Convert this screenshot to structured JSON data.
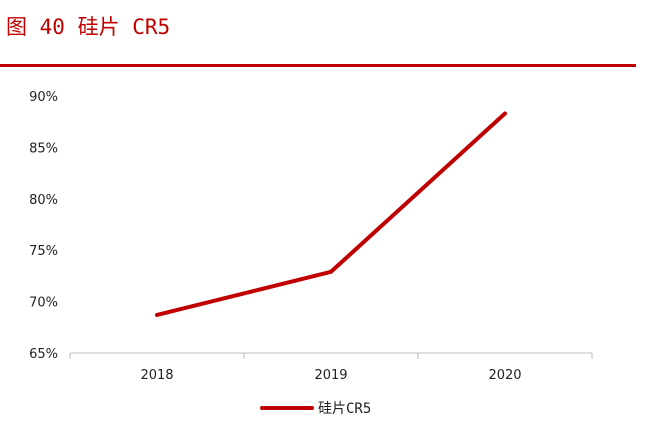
{
  "figure": {
    "title": "图 40  硅片 CR5"
  },
  "colors": {
    "accent": "#c00000",
    "series": "#c00000",
    "axis": "#bfbfbf",
    "text": "#222222"
  },
  "chart_data": {
    "type": "line",
    "title": "",
    "xlabel": "",
    "ylabel": "",
    "categories": [
      "2018",
      "2019",
      "2020"
    ],
    "series": [
      {
        "name": "硅片CR5",
        "values": [
          68.7,
          72.9,
          88.3
        ]
      }
    ],
    "ylim": [
      65,
      90
    ],
    "yticks": [
      65,
      70,
      75,
      80,
      85,
      90
    ],
    "ytick_labels": [
      "65%",
      "70%",
      "75%",
      "80%",
      "85%",
      "90%"
    ],
    "grid": false,
    "legend_position": "bottom-center"
  }
}
